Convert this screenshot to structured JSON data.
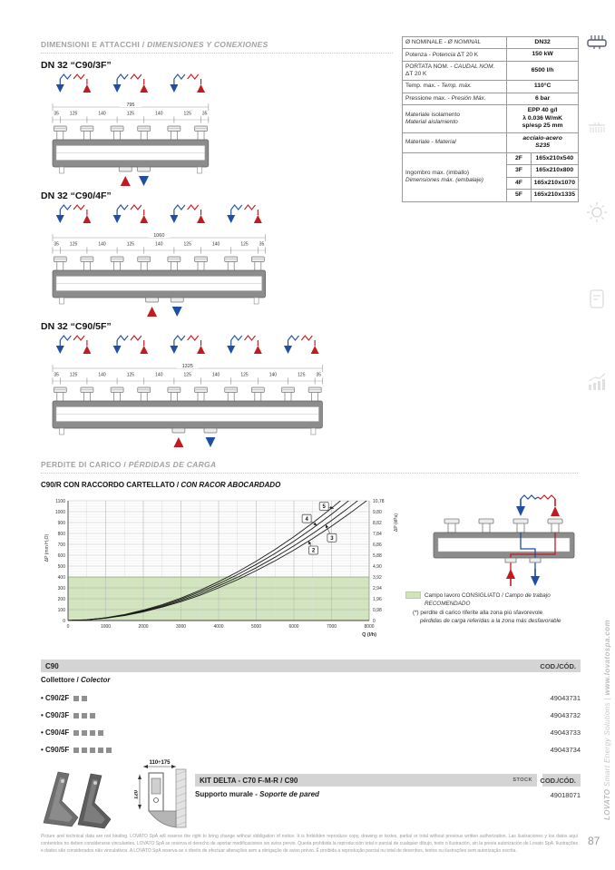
{
  "page": {
    "number": "87",
    "sidebar_brand": "LOVATO",
    "sidebar_rest": " Smart Energy Solutions | ",
    "sidebar_url": "www.lovatospa.com"
  },
  "colors": {
    "red": "#c21b1f",
    "blue": "#1f4f9f",
    "band_green": "#cfe2bb",
    "bar_gray": "#d4d4d4",
    "drawing_gray": "#8c8c8c"
  },
  "section_dimensions": {
    "title_it": "DIMENSIONI E ATTACCHI / ",
    "title_es": "DIMENSIONES Y CONEXIONES"
  },
  "section_pressure": {
    "title_it": "PERDITE DI CARICO / ",
    "title_es": "PÉRDIDAS DE CARGA"
  },
  "spec_table": {
    "rows": [
      {
        "it": "Ø NOMINALE -",
        "es": "Ø NOMINAL",
        "value": [
          "DN32"
        ]
      },
      {
        "it": "Potenza -",
        "es": "Potencia",
        "suffix": "ΔT 20 K",
        "value": [
          "150 kW"
        ]
      },
      {
        "it": "PORTATA NOM. -",
        "es": "CAUDAL NOM.",
        "suffix": "ΔT 20 K",
        "suffix_break": true,
        "value": [
          "6500 l/h"
        ]
      },
      {
        "it": "Temp. max. -",
        "es": "Temp. máx.",
        "value": [
          "110°C"
        ]
      },
      {
        "it": "Pressione max. -",
        "es": "Presión Máx.",
        "value": [
          "6 bar"
        ]
      },
      {
        "it": "Materiale isolamento",
        "es": "Material aislamiento",
        "stack": true,
        "value": [
          "EPP 40 g/l",
          "λ 0.036 W/mK",
          "sp/esp 25 mm"
        ]
      },
      {
        "it": "Materiale -",
        "es": "Material",
        "value": [
          "acciaio-acero",
          "S235"
        ],
        "italic": true
      },
      {
        "it": "Ingombro max. (imballo)",
        "es": "Dimensiones máx. (embalaje)",
        "stack": true,
        "sub": [
          [
            "2F",
            "165x210x540"
          ],
          [
            "3F",
            "165x210x800"
          ],
          [
            "4F",
            "165x210x1070"
          ],
          [
            "5F",
            "165x210x1335"
          ]
        ]
      }
    ]
  },
  "drawings": [
    {
      "label": "DN 32 “C90/3F”",
      "total": "795",
      "dims": [
        "35",
        "125",
        "140",
        "125",
        "140",
        "125",
        "35"
      ],
      "groups": 3
    },
    {
      "label": "DN 32 “C90/4F”",
      "total": "1060",
      "dims": [
        "35",
        "125",
        "140",
        "125",
        "140",
        "125",
        "140",
        "125",
        "35"
      ],
      "groups": 4
    },
    {
      "label": "DN 32 “C90/5F”",
      "total": "1325",
      "dims": [
        "35",
        "125",
        "140",
        "125",
        "140",
        "125",
        "140",
        "125",
        "140",
        "125",
        "35"
      ],
      "groups": 5
    }
  ],
  "chart_data": {
    "type": "line",
    "title": "C90/R CON RACCORDO CARTELLATO / CON RACOR ABOCARDADO",
    "title_it": "C90/R CON RACCORDO CARTELLATO / ",
    "title_es": "CON RACOR ABOCARDADO",
    "xlabel": "Q (l/h)",
    "ylabel_left": "ΔP (mm H₂O)",
    "ylabel_right": "ΔP (kPa)",
    "xlim": [
      0,
      8000
    ],
    "ylim": [
      0,
      1100
    ],
    "x_tick_step": 1000,
    "y_tick_step_left": 100,
    "y_ticks_right": [
      "0",
      "0,98",
      "1,96",
      "2,94",
      "3,92",
      "4,90",
      "5,88",
      "6,86",
      "7,84",
      "8,82",
      "9,80",
      "10,78"
    ],
    "recommended_band": [
      0,
      400
    ],
    "grid": true,
    "x": [
      0,
      500,
      1000,
      1500,
      2000,
      2500,
      3000,
      3500,
      4000,
      4500,
      5000,
      5500,
      6000,
      6500,
      7000,
      7500,
      8000
    ],
    "series": [
      {
        "name": "2",
        "y": [
          0,
          6,
          22,
          46,
          80,
          123,
          173,
          232,
          300,
          375,
          458,
          549,
          647,
          753,
          867,
          989,
          1118
        ]
      },
      {
        "name": "3",
        "y": [
          0,
          6,
          23,
          49,
          85,
          130,
          184,
          246,
          318,
          397,
          485,
          582,
          686,
          799,
          919,
          1048,
          1185
        ]
      },
      {
        "name": "4",
        "y": [
          0,
          7,
          24,
          52,
          90,
          138,
          195,
          262,
          337,
          422,
          515,
          617,
          728,
          848,
          976,
          1113,
          1258
        ]
      },
      {
        "name": "5",
        "y": [
          0,
          7,
          26,
          55,
          96,
          146,
          206,
          277,
          357,
          446,
          545,
          653,
          770,
          897,
          1032,
          1177,
          1331
        ]
      }
    ],
    "labels": [
      {
        "text": "5",
        "bx": 6800,
        "by": 1050,
        "tx": 7060,
        "ty": 1030
      },
      {
        "text": "4",
        "bx": 6340,
        "by": 936,
        "tx": 6620,
        "ty": 872
      },
      {
        "text": "3",
        "bx": 7010,
        "by": 760,
        "tx": 6840,
        "ty": 884
      },
      {
        "text": "2",
        "bx": 6520,
        "by": 646,
        "tx": 6380,
        "ty": 732
      }
    ]
  },
  "chart_legend": {
    "l1_it": "Campo lavoro CONSIGLIATO / ",
    "l1_es": "Campo de trabajo",
    "l2_es": "RECOMENDADO",
    "n1": "(*) perdite di carico riferite alla zona più sfavorevole",
    "n2": "pérdidas de carga referidas a la zona más desfavorable"
  },
  "c90": {
    "header": "C90",
    "cod_label": "COD./CÓD.",
    "sub_it": "Collettore / ",
    "sub_es": "Colector",
    "rows": [
      {
        "name": "C90/2F",
        "squares": 2,
        "code": "49043731"
      },
      {
        "name": "C90/3F",
        "squares": 3,
        "code": "49043732"
      },
      {
        "name": "C90/4F",
        "squares": 4,
        "code": "49043733"
      },
      {
        "name": "C90/5F",
        "squares": 5,
        "code": "49043734"
      }
    ]
  },
  "kit_delta": {
    "title": "KIT DELTA - C70 F-M-R / C90",
    "stock": "STOCK",
    "cod_label": "COD./CÓD.",
    "sub_it": "Supporto murale - ",
    "sub_es": "Soporte de pared",
    "code": "49018071",
    "dim_width": "110÷175",
    "dim_height": "120"
  },
  "footer": {
    "disclaimer": "Picture and technical data are not binding. LOVATO SpA will reserve the right to bring change without obbligation of notice. It is forbidden reproduce copy, drawing or textes, partial or total without previous written authorization. Las ilustraciones y los datos aquí contenidos no deben considerarse vinculantes. LOVATO SpA se reserva el derecho de aportar modificaciones sin aviso previo. Queda prohibida la reproducción total o parcial de cualquier dibujo, texto o ilustración, sin la previa autorización de Lovato SpA. Ilustrações e dados são considerados não vinculativos. A LOVATO SpA reserva-se o direito de efectuar alterações sem a obrigação de aviso prévio. É proibida a reprodução parcial ou total de desenhos, textos ou ilustrações sem autorização escrita."
  }
}
